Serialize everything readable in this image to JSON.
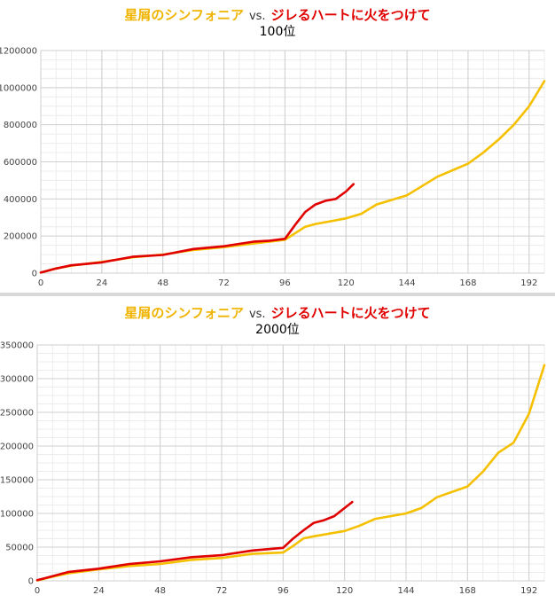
{
  "chart_data": [
    {
      "type": "line",
      "title": "星屑のシンフォニア vs. ジレるハートに火をつけて",
      "subtitle": "100位",
      "title_parts": {
        "a": "星屑のシンフォニア",
        "vs": "vs.",
        "b": "ジレるハートに火をつけて"
      },
      "xlim": [
        0,
        198
      ],
      "ylim": [
        0,
        1200000
      ],
      "x_ticks": [
        0,
        24,
        48,
        72,
        96,
        120,
        144,
        168,
        192
      ],
      "y_ticks": [
        0,
        200000,
        400000,
        600000,
        800000,
        1000000,
        1200000
      ],
      "grid": true,
      "series": [
        {
          "color": "#f5c000",
          "x": [
            0,
            6,
            12,
            24,
            36,
            48,
            60,
            72,
            84,
            96,
            104,
            108,
            120,
            126,
            132,
            144,
            156,
            168,
            174,
            180,
            186,
            192,
            198
          ],
          "y": [
            3000,
            25000,
            40000,
            60000,
            85000,
            100000,
            125000,
            140000,
            160000,
            180000,
            250000,
            265000,
            295000,
            320000,
            370000,
            420000,
            520000,
            590000,
            650000,
            720000,
            800000,
            900000,
            1035000
          ]
        },
        {
          "color": "#e00000",
          "x": [
            0,
            6,
            12,
            24,
            36,
            48,
            60,
            72,
            84,
            90,
            96,
            100,
            104,
            108,
            112,
            116,
            120,
            123
          ],
          "y": [
            3000,
            25000,
            42000,
            58000,
            88000,
            98000,
            130000,
            145000,
            170000,
            175000,
            185000,
            260000,
            330000,
            370000,
            390000,
            400000,
            440000,
            480000
          ]
        }
      ]
    },
    {
      "type": "line",
      "title": "星屑のシンフォニア vs. ジレるハートに火をつけて",
      "subtitle": "2000位",
      "title_parts": {
        "a": "星屑のシンフォニア",
        "vs": "vs.",
        "b": "ジレるハートに火をつけて"
      },
      "xlim": [
        0,
        198
      ],
      "ylim": [
        0,
        350000
      ],
      "x_ticks": [
        0,
        24,
        48,
        72,
        96,
        120,
        144,
        168,
        192
      ],
      "y_ticks": [
        0,
        50000,
        100000,
        150000,
        200000,
        250000,
        300000,
        350000
      ],
      "grid": true,
      "series": [
        {
          "color": "#f5c000",
          "x": [
            0,
            6,
            12,
            24,
            36,
            48,
            60,
            72,
            84,
            96,
            100,
            104,
            108,
            120,
            126,
            132,
            144,
            150,
            156,
            168,
            174,
            180,
            186,
            192,
            198
          ],
          "y": [
            500,
            6000,
            11000,
            17000,
            22000,
            25000,
            31000,
            34000,
            40000,
            42000,
            52000,
            63000,
            66000,
            74000,
            82000,
            92000,
            100000,
            108000,
            124000,
            140000,
            162000,
            190000,
            205000,
            248000,
            320000
          ]
        },
        {
          "color": "#e00000",
          "x": [
            0,
            6,
            12,
            24,
            36,
            48,
            60,
            72,
            84,
            96,
            100,
            104,
            108,
            112,
            116,
            120,
            123
          ],
          "y": [
            1000,
            7000,
            13000,
            18000,
            25000,
            29000,
            35000,
            38000,
            45000,
            49000,
            63000,
            75000,
            86000,
            90000,
            96000,
            108000,
            117000
          ]
        }
      ]
    }
  ]
}
